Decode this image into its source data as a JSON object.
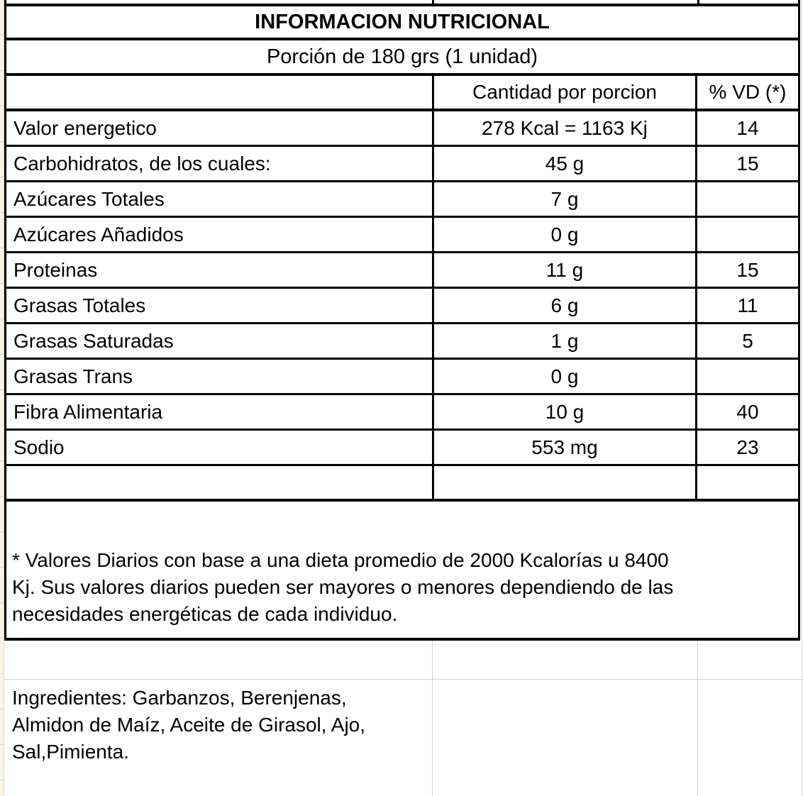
{
  "app": "spreadsheet-nutrition-label",
  "colors": {
    "background": "#ffffff",
    "table_border": "#000000",
    "gridline": "#d4d4d4",
    "margin_strip": "#faf5e1",
    "text": "#000000"
  },
  "nutrition_table": {
    "title": "INFORMACION NUTRICIONAL",
    "portion": "Porción de 180 grs (1 unidad)",
    "columns": {
      "label": "",
      "amount": "Cantidad por porcion",
      "daily_value": "% VD (*)"
    },
    "rows": [
      {
        "label": "Valor energetico",
        "amount": "278 Kcal = 1163 Kj",
        "vd": "14"
      },
      {
        "label": "Carbohidratos, de los cuales:",
        "amount": "45 g",
        "vd": "15"
      },
      {
        "label": "Azúcares Totales",
        "amount": "7 g",
        "vd": ""
      },
      {
        "label": "Azúcares Añadidos",
        "amount": "0 g",
        "vd": ""
      },
      {
        "label": "Proteinas",
        "amount": "11 g",
        "vd": "15"
      },
      {
        "label": "Grasas Totales",
        "amount": "6 g",
        "vd": "11"
      },
      {
        "label": "Grasas Saturadas",
        "amount": "1 g",
        "vd": "5"
      },
      {
        "label": "Grasas Trans",
        "amount": "0 g",
        "vd": ""
      },
      {
        "label": "Fibra Alimentaria",
        "amount": "10 g",
        "vd": "40"
      },
      {
        "label": "Sodio",
        "amount": "553 mg",
        "vd": "23"
      },
      {
        "label": "",
        "amount": "",
        "vd": ""
      }
    ],
    "footnote_lines": [
      "* Valores Diarios con base a una dieta promedio de 2000 Kcalorías u 8400",
      "Kj. Sus valores diarios pueden ser mayores o menores dependiendo de las",
      "necesidades energéticas de cada individuo."
    ]
  },
  "ingredients": {
    "lines": [
      "Ingredientes: Garbanzos, Berenjenas,",
      "Almidon de Maíz, Aceite de Girasol, Ajo,",
      "Sal,Pimienta."
    ]
  }
}
